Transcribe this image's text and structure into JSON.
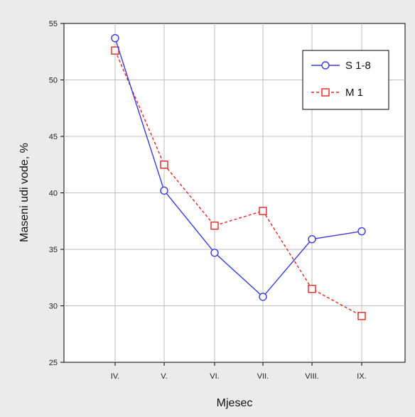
{
  "chart_data": {
    "type": "line",
    "xlabel": "Mjesec",
    "ylabel": "Maseni udi vode, %",
    "categories": [
      "IV.",
      "V.",
      "VI.",
      "VII.",
      "VIII.",
      "IX."
    ],
    "ylim": [
      25,
      55
    ],
    "yticks": [
      25,
      30,
      35,
      40,
      45,
      50,
      55
    ],
    "grid": true,
    "legend_position": "top-right",
    "series": [
      {
        "name": "S 1-8",
        "color": "#3a3adb",
        "line_style": "solid",
        "marker": "circle",
        "values": [
          53.7,
          40.2,
          34.7,
          30.8,
          35.9,
          36.6
        ]
      },
      {
        "name": "M 1",
        "color": "#e8231f",
        "line_style": "dashed",
        "marker": "square",
        "values": [
          52.6,
          42.5,
          37.1,
          38.4,
          31.5,
          29.1
        ]
      }
    ]
  }
}
